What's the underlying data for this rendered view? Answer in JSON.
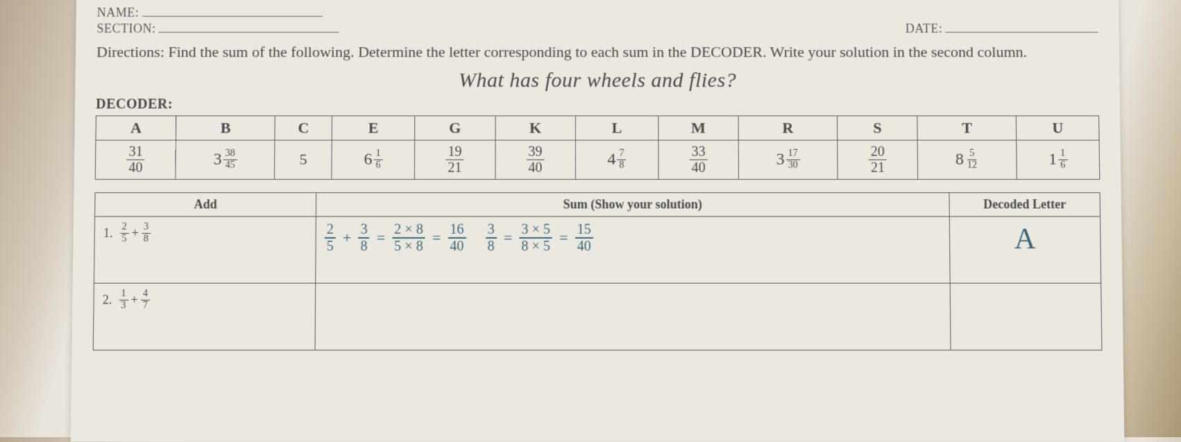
{
  "header": {
    "name_label": "NAME:",
    "section_label": "SECTION:",
    "date_label": "DATE:"
  },
  "directions": {
    "prefix": "Directions:",
    "text": "Find the sum of the following. Determine the letter corresponding to each sum in the DECODER. Write your solution in the second column."
  },
  "riddle": "What has four wheels and flies?",
  "decoder_label": "DECODER:",
  "decoder": {
    "letters": [
      "A",
      "B",
      "C",
      "E",
      "G",
      "K",
      "L",
      "M",
      "R",
      "S",
      "T",
      "U"
    ],
    "values": [
      {
        "type": "frac",
        "num": "31",
        "den": "40"
      },
      {
        "type": "mixed",
        "whole": "3",
        "num": "38",
        "den": "45"
      },
      {
        "type": "int",
        "val": "5"
      },
      {
        "type": "mixed",
        "whole": "6",
        "num": "1",
        "den": "6"
      },
      {
        "type": "frac",
        "num": "19",
        "den": "21"
      },
      {
        "type": "frac",
        "num": "39",
        "den": "40"
      },
      {
        "type": "mixed",
        "whole": "4",
        "num": "7",
        "den": "8"
      },
      {
        "type": "frac",
        "num": "33",
        "den": "40"
      },
      {
        "type": "mixed",
        "whole": "3",
        "num": "17",
        "den": "30"
      },
      {
        "type": "frac",
        "num": "20",
        "den": "21"
      },
      {
        "type": "mixed",
        "whole": "8",
        "num": "5",
        "den": "12"
      },
      {
        "type": "mixed",
        "whole": "1",
        "num": "1",
        "den": "6"
      }
    ]
  },
  "solution_headers": {
    "add": "Add",
    "sum": "Sum (Show your solution)",
    "letter": "Decoded Letter"
  },
  "rows": [
    {
      "num": "1.",
      "problem": {
        "a": {
          "num": "2",
          "den": "5"
        },
        "b": {
          "num": "3",
          "den": "8"
        }
      },
      "work": {
        "p1_a": {
          "num": "2",
          "den": "5"
        },
        "p1_b": {
          "num": "3",
          "den": "8"
        },
        "eq1": "=",
        "p2": {
          "num": "2 × 8",
          "den": "5 × 8"
        },
        "eq2": "=",
        "p3": {
          "num": "16",
          "den": "40"
        },
        "p4": {
          "num": "3",
          "den": "8"
        },
        "eq3": "=",
        "p5": {
          "num": "3 × 5",
          "den": "8 × 5"
        },
        "eq4": "=",
        "p6": {
          "num": "15",
          "den": "40"
        }
      },
      "letter": "A"
    },
    {
      "num": "2.",
      "problem": {
        "a": {
          "num": "1",
          "den": "3"
        },
        "b": {
          "num": "4",
          "den": "7"
        }
      },
      "work": null,
      "letter": ""
    }
  ],
  "colors": {
    "text": "#4a4a4a",
    "border": "#5a5a5a",
    "handwriting": "#3a6478",
    "paper": "#ebe8e0"
  }
}
